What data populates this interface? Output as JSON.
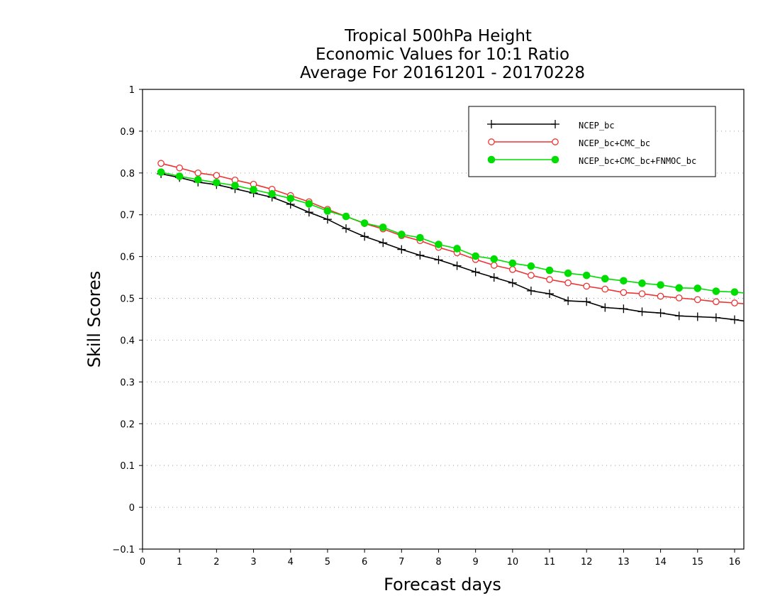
{
  "chart_data": {
    "type": "line",
    "title_lines": [
      "Tropical 500hPa Height",
      "Economic Values for 10:1 Ratio",
      "Average For 20161201 - 20170228"
    ],
    "xlabel": "Forecast days",
    "ylabel": "Skill Scores",
    "xlim": [
      0,
      16.25
    ],
    "ylim": [
      -0.1,
      1
    ],
    "x_ticks": [
      0,
      1,
      2,
      3,
      4,
      5,
      6,
      7,
      8,
      9,
      10,
      11,
      12,
      13,
      14,
      15,
      16
    ],
    "y_ticks": [
      -0.1,
      0,
      0.1,
      0.2,
      0.3,
      0.4,
      0.5,
      0.6,
      0.7,
      0.8,
      0.9,
      1
    ],
    "y_tick_labels": [
      "−0.1",
      "0",
      "0.1",
      "0.2",
      "0.3",
      "0.4",
      "0.5",
      "0.6",
      "0.7",
      "0.8",
      "0.9",
      "1"
    ],
    "grid": "dotted-horizontal",
    "legend_position": "top-right",
    "x": [
      0.5,
      1,
      1.5,
      2,
      2.5,
      3,
      3.5,
      4,
      4.5,
      5,
      5.5,
      6,
      6.5,
      7,
      7.5,
      8,
      8.5,
      9,
      9.5,
      10,
      10.5,
      11,
      11.5,
      12,
      12.5,
      13,
      13.5,
      14,
      14.5,
      15,
      15.5,
      16,
      16.25
    ],
    "series": [
      {
        "name": "NCEP_bc",
        "color": "#000000",
        "marker": "plus",
        "values": [
          0.798,
          0.789,
          0.778,
          0.772,
          0.762,
          0.752,
          0.742,
          0.725,
          0.706,
          0.689,
          0.667,
          0.648,
          0.633,
          0.617,
          0.603,
          0.592,
          0.578,
          0.563,
          0.55,
          0.537,
          0.518,
          0.511,
          0.494,
          0.492,
          0.478,
          0.475,
          0.468,
          0.465,
          0.458,
          0.456,
          0.454,
          0.449,
          0.446
        ]
      },
      {
        "name": "NCEP_bc+CMC_bc",
        "color": "#ee3333",
        "marker": "open-circle",
        "values": [
          0.823,
          0.812,
          0.8,
          0.794,
          0.783,
          0.773,
          0.761,
          0.746,
          0.731,
          0.713,
          0.696,
          0.679,
          0.666,
          0.65,
          0.638,
          0.622,
          0.609,
          0.593,
          0.579,
          0.569,
          0.555,
          0.545,
          0.537,
          0.529,
          0.522,
          0.514,
          0.511,
          0.505,
          0.501,
          0.497,
          0.492,
          0.489,
          0.487
        ]
      },
      {
        "name": "NCEP_bc+CMC_bc+FNMOC_bc",
        "color": "#00dd00",
        "marker": "filled-circle",
        "values": [
          0.802,
          0.792,
          0.784,
          0.777,
          0.77,
          0.76,
          0.75,
          0.739,
          0.726,
          0.709,
          0.696,
          0.68,
          0.67,
          0.653,
          0.645,
          0.629,
          0.619,
          0.601,
          0.594,
          0.584,
          0.577,
          0.567,
          0.56,
          0.555,
          0.547,
          0.542,
          0.536,
          0.532,
          0.525,
          0.524,
          0.517,
          0.515,
          0.513
        ]
      }
    ]
  }
}
